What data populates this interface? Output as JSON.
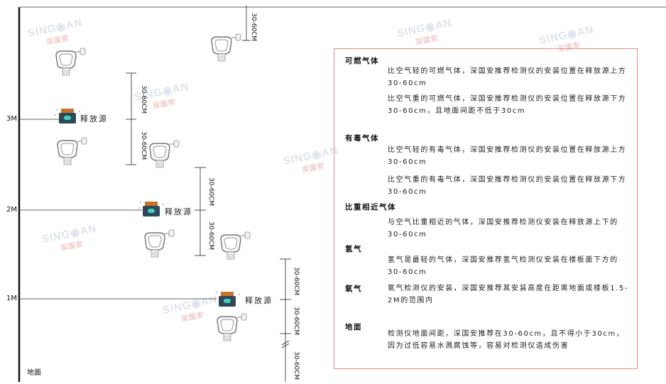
{
  "levels": {
    "m3": "3M",
    "m2": "2M",
    "m1": "1M",
    "ground": "地面"
  },
  "release_source_label": "释放源",
  "dimension_label": "30-60CM",
  "watermark": "SINGOAN 深国安",
  "panel": {
    "sections": [
      {
        "heading": "可燃气体",
        "paragraphs": [
          "比空气轻的可燃气体，深国安推荐检测仪的安装位置在释放源上方30-60cm",
          "比空气重的可燃气体，深国安推荐检测仪的安装位置在释放源下方30-60cm，且地面间距不低于30cm"
        ]
      },
      {
        "heading": "有毒气体",
        "paragraphs": [
          "比空气轻的有毒气体，深国安推荐检测仪的安装位置在释放源上方30-60cm",
          "比空气重的有毒气体，深国安推荐检测仪的安装位置在释放源下方30-60cm"
        ]
      },
      {
        "heading": "比重相近气体",
        "paragraphs": [
          "与空气比重相近的气体，深国安推荐检测仪安装在释放源上下的30-60cm"
        ]
      },
      {
        "heading": "氢气",
        "paragraphs": [
          "氢气是最轻的气体，深国安推荐氢气检测仪安装在楼板面下方的30-60cm"
        ]
      },
      {
        "heading": "氧气",
        "paragraphs": [
          "氧气检测仪的安装，深国安推荐其安装高度在距离地面或楼板1.5-2M的范围内"
        ]
      },
      {
        "heading": "地面",
        "paragraphs": [
          "检测仪地面间距，深国安推荐在30-60cm，且不得小于30cm，因为过低容易水溅腐蚀等，容易对检测仪造成伤害"
        ]
      }
    ]
  },
  "colors": {
    "panel_border": "#e88a8f",
    "source_body": "#2f4858",
    "source_cap": "#c8722c",
    "source_icon": "#3fd0c0"
  }
}
